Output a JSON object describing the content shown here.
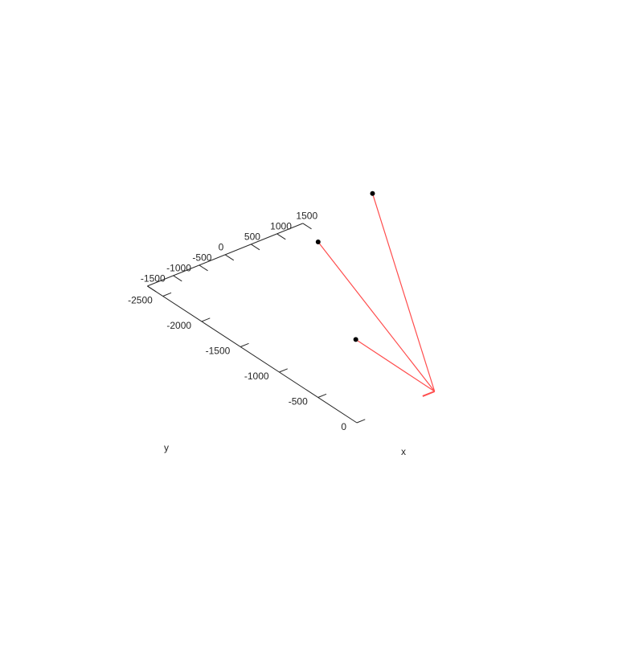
{
  "chart_data": {
    "type": "line3d",
    "title": "",
    "xlabel": "x",
    "ylabel": "y",
    "x_axis": {
      "range": [
        -1500,
        1500
      ],
      "ticks": [
        -1500,
        -1000,
        -500,
        0,
        500,
        1000,
        1500
      ],
      "tick_labels": [
        "-1500",
        "-1000",
        "-500",
        "0",
        "500",
        "1000",
        "1500"
      ]
    },
    "y_axis": {
      "range": [
        -2700,
        0
      ],
      "ticks": [
        0,
        -500,
        -1000,
        -1500,
        -2000,
        -2500
      ],
      "tick_labels": [
        "0",
        "-500",
        "-1000",
        "-1500",
        "-2000",
        "-2500"
      ]
    },
    "grid": false,
    "legend": "none",
    "origin": {
      "x": 0,
      "y": 0,
      "z": 0
    },
    "segments": [
      {
        "from": [
          0,
          0,
          0
        ],
        "to": [
          -1520,
          0,
          1500
        ]
      },
      {
        "from": [
          0,
          0,
          0
        ],
        "to": [
          -900,
          -900,
          2200
        ]
      },
      {
        "from": [
          0,
          0,
          0
        ],
        "to": [
          -120,
          -720,
          2940
        ]
      }
    ],
    "colors": {
      "segment_line": "#ff4d4d",
      "endpoint_marker": "#000000",
      "axis": "#262626"
    }
  }
}
